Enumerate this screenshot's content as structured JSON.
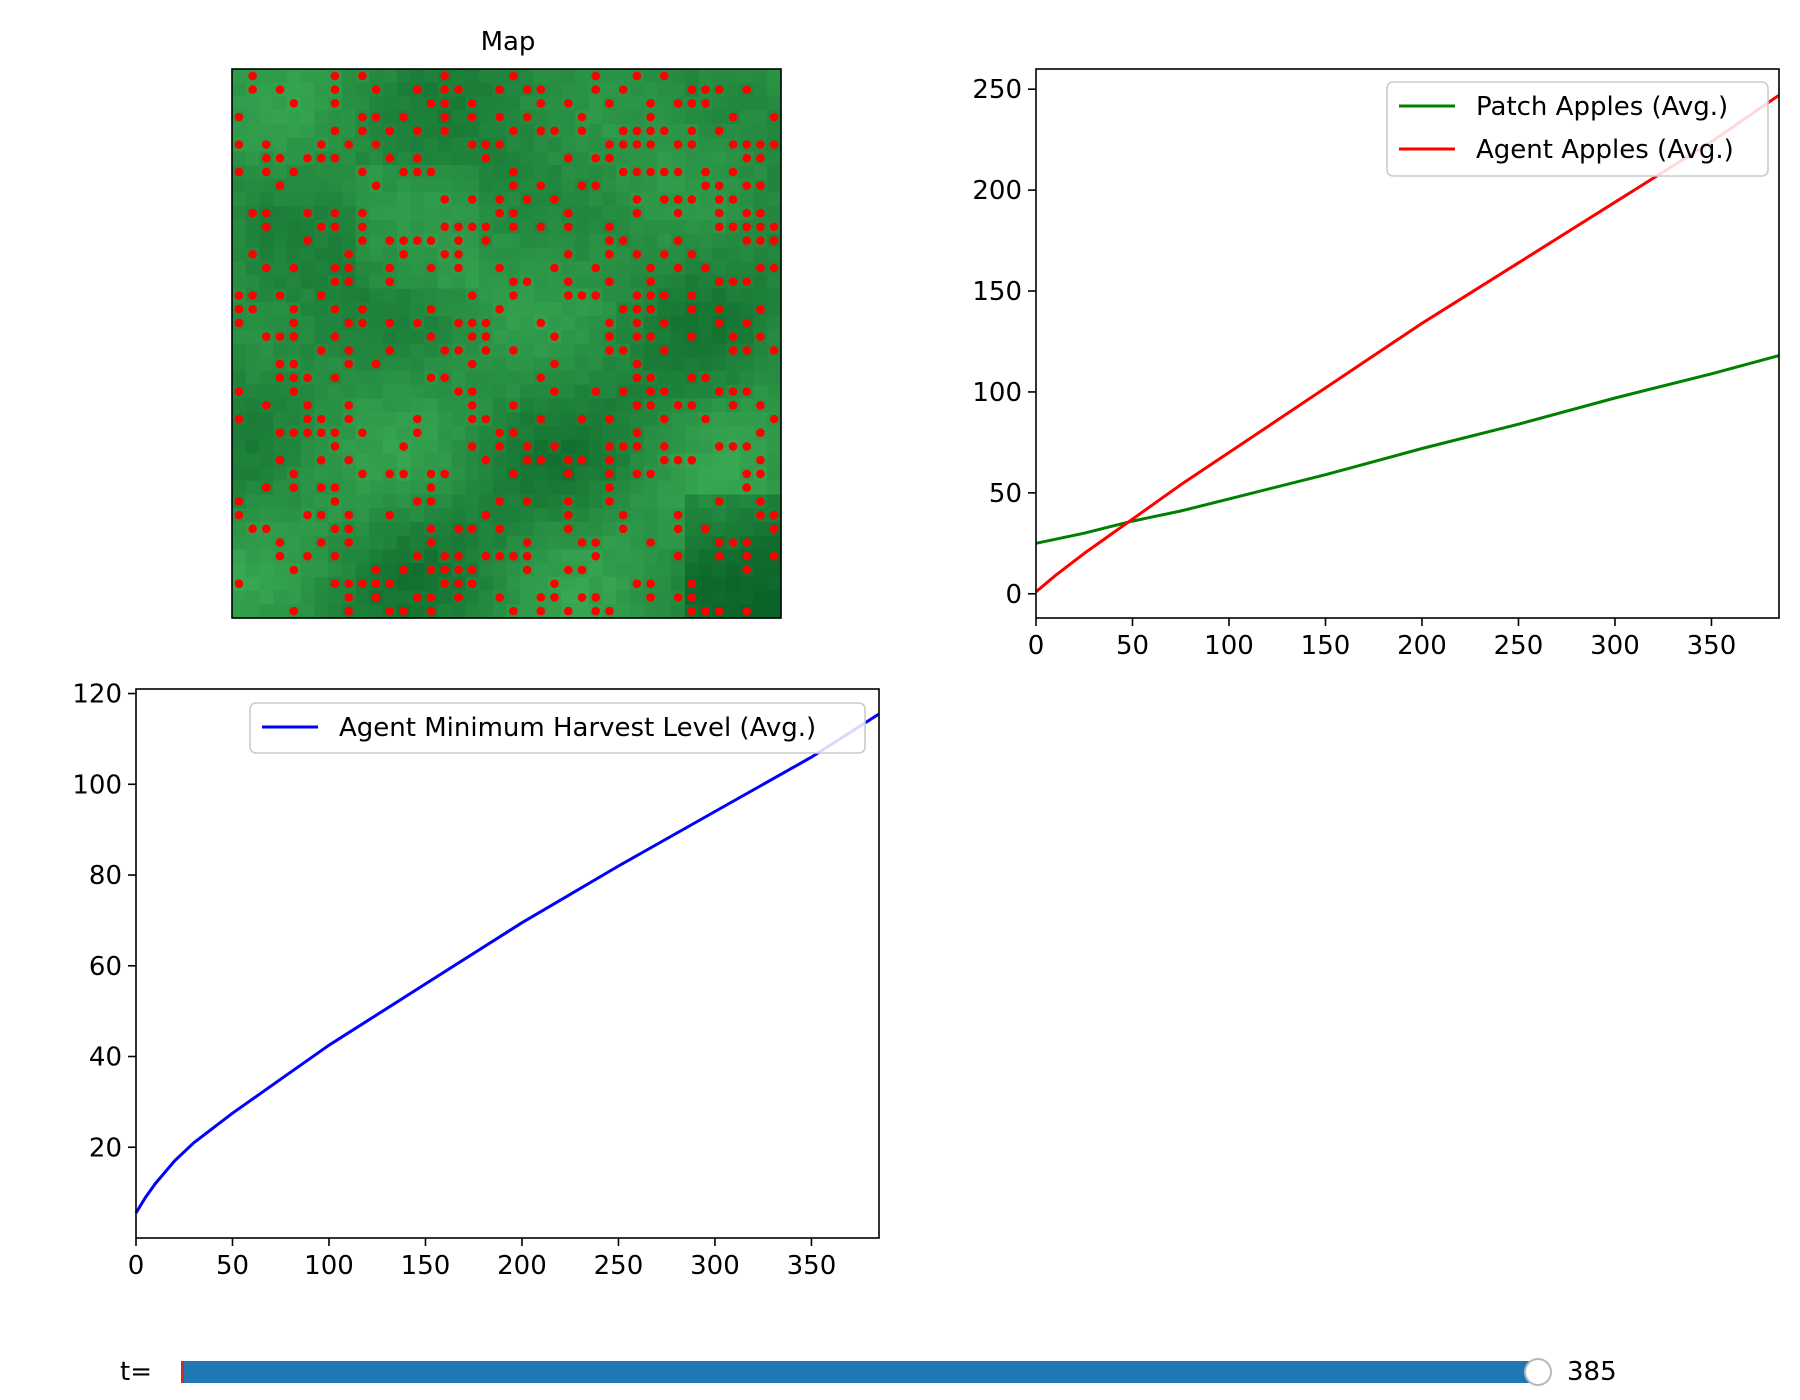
{
  "colors": {
    "patch": "#008000",
    "agent": "#ff0000",
    "harvest": "#0000ff",
    "slider_fill": "#1f77b4",
    "slider_marker": "#d62728",
    "map_agent": "#ff0000"
  },
  "chart_data": [
    {
      "type": "heatmap",
      "title": "Map",
      "grid_size": 40,
      "colormap": "greens",
      "overlay": "red agent markers",
      "xticks": "hidden",
      "yticks": "hidden"
    },
    {
      "type": "line",
      "title": "",
      "xlabel": "",
      "ylabel": "",
      "xlim": [
        0,
        385
      ],
      "ylim": [
        -12,
        260
      ],
      "xticks": [
        0,
        50,
        100,
        150,
        200,
        250,
        300,
        350
      ],
      "yticks": [
        0,
        50,
        100,
        150,
        200,
        250
      ],
      "legend_position": "upper right",
      "series": [
        {
          "name": "Patch Apples (Avg.)",
          "color": "#008000",
          "x": [
            0,
            25,
            50,
            75,
            100,
            150,
            200,
            250,
            300,
            350,
            385
          ],
          "y": [
            25,
            30,
            36,
            41,
            47,
            59,
            72,
            84,
            97,
            109,
            118
          ]
        },
        {
          "name": "Agent Apples (Avg.)",
          "color": "#ff0000",
          "x": [
            0,
            10,
            25,
            50,
            75,
            100,
            150,
            200,
            250,
            300,
            350,
            385
          ],
          "y": [
            1,
            9,
            20,
            37,
            54,
            70,
            102,
            134,
            164,
            194,
            224,
            247
          ]
        }
      ]
    },
    {
      "type": "line",
      "title": "",
      "xlabel": "",
      "ylabel": "",
      "xlim": [
        0,
        385
      ],
      "ylim": [
        0,
        121
      ],
      "xticks": [
        0,
        50,
        100,
        150,
        200,
        250,
        300,
        350
      ],
      "yticks": [
        20,
        40,
        60,
        80,
        100,
        120
      ],
      "legend_position": "upper right",
      "series": [
        {
          "name": "Agent Minimum Harvest Level (Avg.)",
          "color": "#0000ff",
          "x": [
            0,
            5,
            10,
            20,
            30,
            50,
            75,
            100,
            150,
            200,
            250,
            300,
            350,
            385
          ],
          "y": [
            5.5,
            9,
            12,
            17,
            21,
            27.5,
            35,
            42.5,
            56,
            69.5,
            82,
            94,
            106,
            115.5
          ]
        }
      ]
    }
  ],
  "slider": {
    "label": "t=",
    "value": "385",
    "fraction": 1.0
  }
}
